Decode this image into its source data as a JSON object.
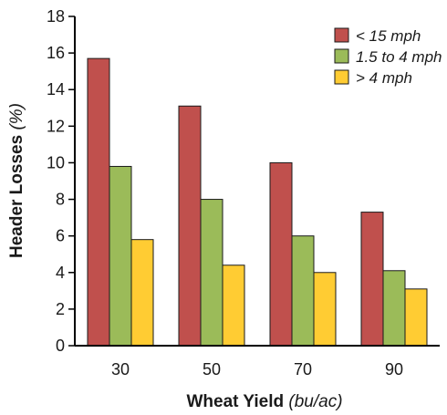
{
  "chart_data": {
    "type": "bar",
    "xlabel_main": "Wheat Yield",
    "xlabel_unit": "(bu/ac)",
    "ylabel_main": "Header Losses",
    "ylabel_unit": "(%)",
    "categories": [
      "30",
      "50",
      "70",
      "90"
    ],
    "ylim": [
      0,
      18
    ],
    "yticks": [
      "0",
      "2",
      "4",
      "6",
      "8",
      "10",
      "12",
      "14",
      "16",
      "18"
    ],
    "grid": false,
    "legend_position": "top-right",
    "series": [
      {
        "name": "< 15 mph",
        "color": "#c0504d",
        "values": [
          15.7,
          13.1,
          10.0,
          7.3
        ]
      },
      {
        "name": "1.5 to 4 mph",
        "color": "#9bbb59",
        "values": [
          9.8,
          8.0,
          6.0,
          4.1
        ]
      },
      {
        "name": "> 4 mph",
        "color": "#ffcc33",
        "values": [
          5.8,
          4.4,
          4.0,
          3.1
        ]
      }
    ]
  }
}
